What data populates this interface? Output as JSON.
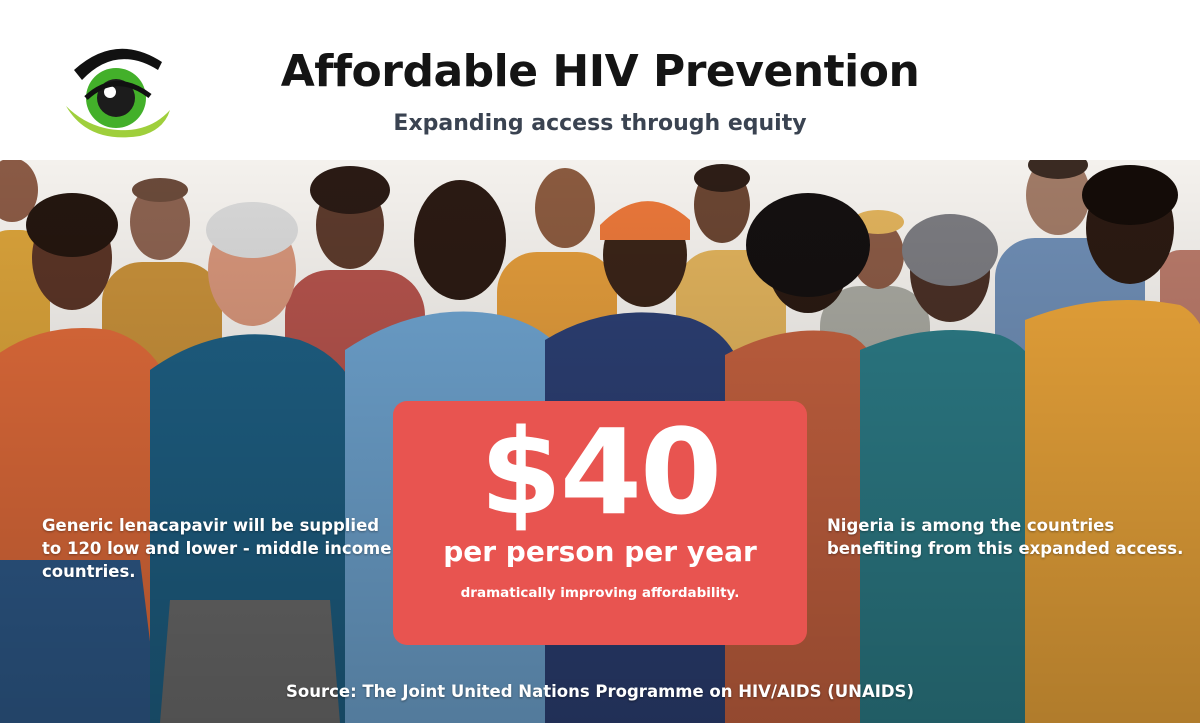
{
  "header": {
    "title": "Affordable HIV Prevention",
    "subtitle": "Expanding access through equity",
    "logo": "eye-logo-icon"
  },
  "left_panel": {
    "text": "Generic lenacapavir will be supplied to 120 low and lower - middle income countries."
  },
  "price_box": {
    "price": "$40",
    "unit": "per person per year",
    "note": "dramatically improving affordability."
  },
  "right_panel": {
    "text": "Nigeria is among the countries benefiting from this expanded access."
  },
  "footer": {
    "source": "Source: The Joint United Nations Programme on HIV/AIDS (UNAIDS)"
  },
  "colors": {
    "price_box": "#e85450",
    "title": "#141414",
    "subtitle": "#3a4351",
    "logo_green": "#43b02a",
    "logo_lime": "#9fcf3c"
  }
}
